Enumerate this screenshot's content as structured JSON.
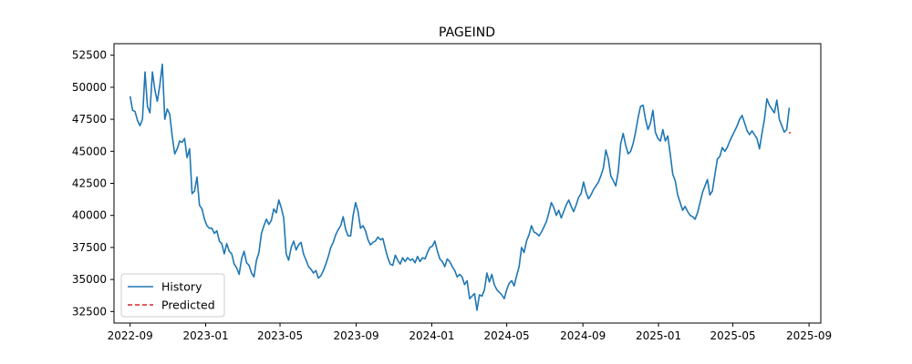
{
  "chart_data": {
    "type": "line",
    "title": "PAGEIND",
    "xlabel": "",
    "ylabel": "",
    "x_ticks": [
      "2022-09",
      "2023-01",
      "2023-05",
      "2023-09",
      "2024-01",
      "2024-05",
      "2024-09",
      "2025-01",
      "2025-05",
      "2025-09"
    ],
    "y_ticks": [
      "32500",
      "35000",
      "37500",
      "40000",
      "42500",
      "45000",
      "47500",
      "50000",
      "52500"
    ],
    "ylim": [
      31600,
      53400
    ],
    "xlim": [
      "2022-08-06",
      "2025-09-20"
    ],
    "grid": false,
    "legend_position": "lower-left",
    "series": [
      {
        "name": "History",
        "color": "#1f77b4",
        "style": "solid",
        "points": [
          [
            "2022-09-01",
            49300
          ],
          [
            "2022-09-05",
            48200
          ],
          [
            "2022-09-09",
            48100
          ],
          [
            "2022-09-13",
            47400
          ],
          [
            "2022-09-17",
            47000
          ],
          [
            "2022-09-21",
            47500
          ],
          [
            "2022-09-25",
            51200
          ],
          [
            "2022-09-29",
            48500
          ],
          [
            "2022-10-03",
            48000
          ],
          [
            "2022-10-07",
            51200
          ],
          [
            "2022-10-11",
            49800
          ],
          [
            "2022-10-15",
            48900
          ],
          [
            "2022-10-19",
            50200
          ],
          [
            "2022-10-23",
            51800
          ],
          [
            "2022-10-27",
            47500
          ],
          [
            "2022-10-31",
            48300
          ],
          [
            "2022-11-04",
            47900
          ],
          [
            "2022-11-08",
            46200
          ],
          [
            "2022-11-12",
            44800
          ],
          [
            "2022-11-16",
            45200
          ],
          [
            "2022-11-20",
            45800
          ],
          [
            "2022-11-24",
            45700
          ],
          [
            "2022-11-28",
            46000
          ],
          [
            "2022-12-02",
            44500
          ],
          [
            "2022-12-06",
            45200
          ],
          [
            "2022-12-10",
            41700
          ],
          [
            "2022-12-14",
            41900
          ],
          [
            "2022-12-18",
            43000
          ],
          [
            "2022-12-22",
            40800
          ],
          [
            "2022-12-26",
            40500
          ],
          [
            "2022-12-30",
            39700
          ],
          [
            "2023-01-03",
            39200
          ],
          [
            "2023-01-07",
            39000
          ],
          [
            "2023-01-11",
            39000
          ],
          [
            "2023-01-15",
            38600
          ],
          [
            "2023-01-19",
            38800
          ],
          [
            "2023-01-23",
            38000
          ],
          [
            "2023-01-27",
            37800
          ],
          [
            "2023-01-31",
            37000
          ],
          [
            "2023-02-04",
            37800
          ],
          [
            "2023-02-08",
            37200
          ],
          [
            "2023-02-12",
            37000
          ],
          [
            "2023-02-16",
            36200
          ],
          [
            "2023-02-20",
            35900
          ],
          [
            "2023-02-24",
            35400
          ],
          [
            "2023-02-28",
            36600
          ],
          [
            "2023-03-04",
            37200
          ],
          [
            "2023-03-08",
            36300
          ],
          [
            "2023-03-12",
            36100
          ],
          [
            "2023-03-16",
            35500
          ],
          [
            "2023-03-20",
            35200
          ],
          [
            "2023-03-24",
            36500
          ],
          [
            "2023-03-28",
            37100
          ],
          [
            "2023-04-01",
            38600
          ],
          [
            "2023-04-05",
            39200
          ],
          [
            "2023-04-09",
            39700
          ],
          [
            "2023-04-13",
            39300
          ],
          [
            "2023-04-17",
            39600
          ],
          [
            "2023-04-21",
            40500
          ],
          [
            "2023-04-25",
            40200
          ],
          [
            "2023-04-29",
            41200
          ],
          [
            "2023-05-03",
            40600
          ],
          [
            "2023-05-07",
            39800
          ],
          [
            "2023-05-11",
            37000
          ],
          [
            "2023-05-15",
            36500
          ],
          [
            "2023-05-19",
            37500
          ],
          [
            "2023-05-23",
            38000
          ],
          [
            "2023-05-27",
            37300
          ],
          [
            "2023-05-31",
            37700
          ],
          [
            "2023-06-04",
            37900
          ],
          [
            "2023-06-08",
            37000
          ],
          [
            "2023-06-12",
            36500
          ],
          [
            "2023-06-16",
            36000
          ],
          [
            "2023-06-20",
            35800
          ],
          [
            "2023-06-24",
            35500
          ],
          [
            "2023-06-28",
            35700
          ],
          [
            "2023-07-02",
            35100
          ],
          [
            "2023-07-06",
            35300
          ],
          [
            "2023-07-10",
            35700
          ],
          [
            "2023-07-14",
            36200
          ],
          [
            "2023-07-18",
            36800
          ],
          [
            "2023-07-22",
            37500
          ],
          [
            "2023-07-26",
            37900
          ],
          [
            "2023-07-30",
            38500
          ],
          [
            "2023-08-03",
            38900
          ],
          [
            "2023-08-07",
            39200
          ],
          [
            "2023-08-11",
            39900
          ],
          [
            "2023-08-15",
            38900
          ],
          [
            "2023-08-19",
            38400
          ],
          [
            "2023-08-23",
            38400
          ],
          [
            "2023-08-27",
            40000
          ],
          [
            "2023-08-31",
            41000
          ],
          [
            "2023-09-04",
            40300
          ],
          [
            "2023-09-08",
            39000
          ],
          [
            "2023-09-12",
            39200
          ],
          [
            "2023-09-16",
            38800
          ],
          [
            "2023-09-20",
            38100
          ],
          [
            "2023-09-24",
            37700
          ],
          [
            "2023-09-28",
            37900
          ],
          [
            "2023-10-02",
            38000
          ],
          [
            "2023-10-06",
            38300
          ],
          [
            "2023-10-10",
            38100
          ],
          [
            "2023-10-14",
            38200
          ],
          [
            "2023-10-18",
            37400
          ],
          [
            "2023-10-22",
            36700
          ],
          [
            "2023-10-26",
            36200
          ],
          [
            "2023-10-30",
            36100
          ],
          [
            "2023-11-03",
            36900
          ],
          [
            "2023-11-07",
            36500
          ],
          [
            "2023-11-11",
            36200
          ],
          [
            "2023-11-15",
            36700
          ],
          [
            "2023-11-19",
            36400
          ],
          [
            "2023-11-23",
            36700
          ],
          [
            "2023-11-27",
            36500
          ],
          [
            "2023-12-01",
            36600
          ],
          [
            "2023-12-05",
            36300
          ],
          [
            "2023-12-09",
            36800
          ],
          [
            "2023-12-13",
            36400
          ],
          [
            "2023-12-17",
            36700
          ],
          [
            "2023-12-21",
            36600
          ],
          [
            "2023-12-25",
            37100
          ],
          [
            "2023-12-29",
            37500
          ],
          [
            "2024-01-02",
            37600
          ],
          [
            "2024-01-06",
            38000
          ],
          [
            "2024-01-10",
            37200
          ],
          [
            "2024-01-14",
            36600
          ],
          [
            "2024-01-18",
            36400
          ],
          [
            "2024-01-22",
            36000
          ],
          [
            "2024-01-26",
            36600
          ],
          [
            "2024-01-30",
            36400
          ],
          [
            "2024-02-03",
            36000
          ],
          [
            "2024-02-07",
            35700
          ],
          [
            "2024-02-11",
            35200
          ],
          [
            "2024-02-15",
            35400
          ],
          [
            "2024-02-19",
            35200
          ],
          [
            "2024-02-23",
            34600
          ],
          [
            "2024-02-27",
            34900
          ],
          [
            "2024-03-02",
            33500
          ],
          [
            "2024-03-06",
            33700
          ],
          [
            "2024-03-10",
            33900
          ],
          [
            "2024-03-14",
            32600
          ],
          [
            "2024-03-18",
            33800
          ],
          [
            "2024-03-22",
            33700
          ],
          [
            "2024-03-26",
            34200
          ],
          [
            "2024-03-30",
            35500
          ],
          [
            "2024-04-03",
            34800
          ],
          [
            "2024-04-07",
            35400
          ],
          [
            "2024-04-11",
            34600
          ],
          [
            "2024-04-15",
            34200
          ],
          [
            "2024-04-19",
            34000
          ],
          [
            "2024-04-23",
            33800
          ],
          [
            "2024-04-27",
            33500
          ],
          [
            "2024-05-01",
            34200
          ],
          [
            "2024-05-05",
            34700
          ],
          [
            "2024-05-09",
            34900
          ],
          [
            "2024-05-13",
            34500
          ],
          [
            "2024-05-17",
            35300
          ],
          [
            "2024-05-21",
            36000
          ],
          [
            "2024-05-25",
            37500
          ],
          [
            "2024-05-29",
            37100
          ],
          [
            "2024-06-02",
            38000
          ],
          [
            "2024-06-06",
            38500
          ],
          [
            "2024-06-10",
            39200
          ],
          [
            "2024-06-14",
            38700
          ],
          [
            "2024-06-18",
            38600
          ],
          [
            "2024-06-22",
            38400
          ],
          [
            "2024-06-26",
            38700
          ],
          [
            "2024-06-30",
            39100
          ],
          [
            "2024-07-04",
            39500
          ],
          [
            "2024-07-08",
            40200
          ],
          [
            "2024-07-12",
            41000
          ],
          [
            "2024-07-16",
            40600
          ],
          [
            "2024-07-20",
            40000
          ],
          [
            "2024-07-24",
            40400
          ],
          [
            "2024-07-28",
            39800
          ],
          [
            "2024-08-01",
            40300
          ],
          [
            "2024-08-05",
            40800
          ],
          [
            "2024-08-09",
            41200
          ],
          [
            "2024-08-13",
            40700
          ],
          [
            "2024-08-17",
            40300
          ],
          [
            "2024-08-21",
            40800
          ],
          [
            "2024-08-25",
            41400
          ],
          [
            "2024-08-29",
            41700
          ],
          [
            "2024-09-02",
            42600
          ],
          [
            "2024-09-06",
            41800
          ],
          [
            "2024-09-10",
            41300
          ],
          [
            "2024-09-14",
            41600
          ],
          [
            "2024-09-18",
            42000
          ],
          [
            "2024-09-22",
            42300
          ],
          [
            "2024-09-26",
            42600
          ],
          [
            "2024-09-30",
            43100
          ],
          [
            "2024-10-04",
            43700
          ],
          [
            "2024-10-08",
            45100
          ],
          [
            "2024-10-12",
            44400
          ],
          [
            "2024-10-16",
            43100
          ],
          [
            "2024-10-20",
            42700
          ],
          [
            "2024-10-24",
            42300
          ],
          [
            "2024-10-28",
            43400
          ],
          [
            "2024-11-01",
            45600
          ],
          [
            "2024-11-05",
            46400
          ],
          [
            "2024-11-09",
            45500
          ],
          [
            "2024-11-13",
            44800
          ],
          [
            "2024-11-17",
            45000
          ],
          [
            "2024-11-21",
            45600
          ],
          [
            "2024-11-25",
            46500
          ],
          [
            "2024-11-29",
            47600
          ],
          [
            "2024-12-03",
            48500
          ],
          [
            "2024-12-07",
            48600
          ],
          [
            "2024-12-11",
            47500
          ],
          [
            "2024-12-15",
            46700
          ],
          [
            "2024-12-19",
            47200
          ],
          [
            "2024-12-23",
            48200
          ],
          [
            "2024-12-27",
            46500
          ],
          [
            "2024-12-31",
            46000
          ],
          [
            "2025-01-04",
            45800
          ],
          [
            "2025-01-08",
            46700
          ],
          [
            "2025-01-12",
            45800
          ],
          [
            "2025-01-16",
            46200
          ],
          [
            "2025-01-20",
            44800
          ],
          [
            "2025-01-24",
            43200
          ],
          [
            "2025-01-28",
            42700
          ],
          [
            "2025-02-01",
            41600
          ],
          [
            "2025-02-05",
            41000
          ],
          [
            "2025-02-09",
            40400
          ],
          [
            "2025-02-13",
            40700
          ],
          [
            "2025-02-17",
            40300
          ],
          [
            "2025-02-21",
            40000
          ],
          [
            "2025-02-25",
            39900
          ],
          [
            "2025-03-01",
            39700
          ],
          [
            "2025-03-05",
            40200
          ],
          [
            "2025-03-09",
            41000
          ],
          [
            "2025-03-13",
            41800
          ],
          [
            "2025-03-17",
            42300
          ],
          [
            "2025-03-21",
            42800
          ],
          [
            "2025-03-25",
            41600
          ],
          [
            "2025-03-29",
            41900
          ],
          [
            "2025-04-02",
            43200
          ],
          [
            "2025-04-06",
            44400
          ],
          [
            "2025-04-10",
            44600
          ],
          [
            "2025-04-14",
            45300
          ],
          [
            "2025-04-18",
            45000
          ],
          [
            "2025-04-22",
            45300
          ],
          [
            "2025-04-26",
            45800
          ],
          [
            "2025-04-30",
            46200
          ],
          [
            "2025-05-04",
            46600
          ],
          [
            "2025-05-08",
            47000
          ],
          [
            "2025-05-12",
            47500
          ],
          [
            "2025-05-16",
            47800
          ],
          [
            "2025-05-20",
            47200
          ],
          [
            "2025-05-24",
            46600
          ],
          [
            "2025-05-28",
            46300
          ],
          [
            "2025-06-01",
            46600
          ],
          [
            "2025-06-05",
            46300
          ],
          [
            "2025-06-09",
            46000
          ],
          [
            "2025-06-13",
            45200
          ],
          [
            "2025-06-17",
            46400
          ],
          [
            "2025-06-21",
            47500
          ],
          [
            "2025-06-25",
            49100
          ],
          [
            "2025-06-29",
            48600
          ],
          [
            "2025-07-03",
            48300
          ],
          [
            "2025-07-07",
            48000
          ],
          [
            "2025-07-11",
            49000
          ],
          [
            "2025-07-15",
            47500
          ],
          [
            "2025-07-19",
            47000
          ],
          [
            "2025-07-23",
            46500
          ],
          [
            "2025-07-27",
            46700
          ],
          [
            "2025-07-31",
            48400
          ]
        ]
      },
      {
        "name": "Predicted",
        "color": "#d62728",
        "style": "dashed",
        "points": [
          [
            "2025-07-31",
            46500
          ],
          [
            "2025-08-02",
            46400
          ]
        ]
      }
    ]
  }
}
